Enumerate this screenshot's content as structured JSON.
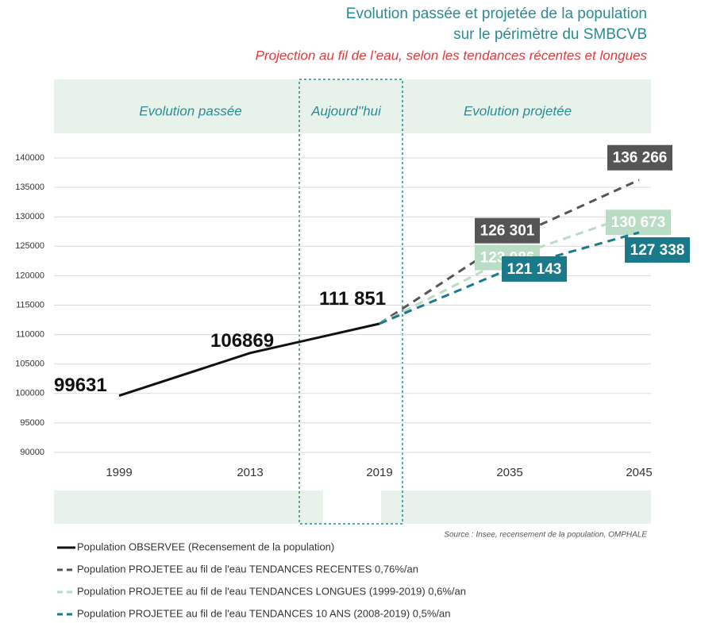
{
  "chart_data": {
    "type": "line",
    "title": [
      "Evolution passée et projetée de la population",
      "sur le périmètre du SMBCVB"
    ],
    "subtitle": "Projection au fil de l’eau, selon les tendances récentes et longues",
    "periods": [
      "Evolution passée",
      "Aujourd''hui",
      "Evolution projetée"
    ],
    "categories": [
      "1999",
      "2013",
      "2019",
      "2035",
      "2045"
    ],
    "ylim": [
      90000,
      140000
    ],
    "yticks": [
      90000,
      95000,
      100000,
      105000,
      110000,
      115000,
      120000,
      125000,
      130000,
      135000,
      140000
    ],
    "grid": true,
    "series": [
      {
        "name": "Population OBSERVEE (Recensement de la population)",
        "color": "#111111",
        "dash": false,
        "values": [
          99631,
          106869,
          111851,
          null,
          null
        ],
        "value_labels": [
          "99631",
          "106869",
          "111 851",
          null,
          null
        ]
      },
      {
        "name": "Population PROJETEE au fil de l'eau TENDANCES RECENTES 0,76%/an",
        "color": "#555555",
        "dash": true,
        "values": [
          null,
          null,
          111851,
          126301,
          136266
        ],
        "value_labels": [
          null,
          null,
          null,
          "126 301",
          "136 266"
        ]
      },
      {
        "name": "Population PROJETEE au fil de l'eau TENDANCES LONGUES (1999-2019) 0,6%/an",
        "color": "#b9dcc4",
        "dash": true,
        "values": [
          null,
          null,
          111851,
          123086,
          130673
        ],
        "value_labels": [
          null,
          null,
          null,
          "123 086",
          "130 673"
        ]
      },
      {
        "name": "Population PROJETEE au fil de l'eau TENDANCES 10 ANS (2008-2019) 0,5%/an",
        "color": "#1a7a8a",
        "dash": true,
        "values": [
          null,
          null,
          111851,
          121143,
          127338
        ],
        "value_labels": [
          null,
          null,
          null,
          "121 143",
          "127 338"
        ]
      }
    ],
    "source": "Source : Insee, recensement de la population, OMPHALE"
  }
}
